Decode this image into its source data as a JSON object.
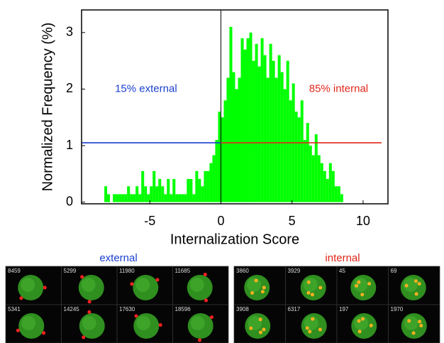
{
  "chart_data": {
    "type": "histogram",
    "xlabel": "Internalization Score",
    "ylabel": "Normalized Frequency (%)",
    "xlim": [
      -9.8,
      11.75
    ],
    "ylim": [
      -0.03,
      3.4
    ],
    "xticks": [
      -5,
      0,
      5,
      10
    ],
    "yticks": [
      0,
      1,
      2,
      3
    ],
    "color": "#00ff00",
    "bins": [
      -8.4,
      -8.2,
      -8.0,
      -7.8,
      -7.6,
      -7.4,
      -7.2,
      -7.0,
      -6.8,
      -6.6,
      -6.4,
      -6.2,
      -6.0,
      -5.8,
      -5.6,
      -5.4,
      -5.2,
      -5.0,
      -4.8,
      -4.6,
      -4.4,
      -4.2,
      -4.0,
      -3.8,
      -3.6,
      -3.4,
      -3.2,
      -3.0,
      -2.8,
      -2.6,
      -2.4,
      -2.2,
      -2.0,
      -1.8,
      -1.6,
      -1.4,
      -1.2,
      -1.0,
      -0.8,
      -0.6,
      -0.4,
      -0.2,
      0.0,
      0.2,
      0.4,
      0.6,
      0.8,
      1.0,
      1.2,
      1.4,
      1.6,
      1.8,
      2.0,
      2.2,
      2.4,
      2.6,
      2.8,
      3.0,
      3.2,
      3.4,
      3.6,
      3.8,
      4.0,
      4.2,
      4.4,
      4.6,
      4.8,
      5.0,
      5.2,
      5.4,
      5.6,
      5.8,
      6.0,
      6.2,
      6.4,
      6.6,
      6.8,
      7.0,
      7.2,
      7.4,
      7.6,
      7.8,
      8.0,
      8.2,
      8.4,
      8.6
    ],
    "values": [
      0,
      0.28,
      0.14,
      0,
      0.14,
      0.14,
      0.14,
      0.14,
      0.14,
      0.28,
      0.14,
      0.14,
      0.28,
      0.14,
      0.55,
      0.28,
      0.14,
      0.28,
      0.55,
      0.28,
      0.41,
      0.28,
      0.14,
      0.41,
      0.14,
      0.41,
      0.14,
      0.14,
      0.14,
      0.14,
      0.41,
      0.41,
      0.14,
      0.55,
      0.41,
      0.28,
      0.55,
      0.55,
      0.69,
      0.83,
      1.1,
      1.6,
      1.5,
      1.8,
      2.2,
      3.1,
      2.3,
      2.0,
      2.2,
      2.9,
      2.7,
      2.9,
      3.0,
      2.5,
      2.8,
      2.4,
      2.9,
      2.6,
      2.2,
      2.8,
      2.5,
      2.2,
      2.6,
      2.3,
      2.0,
      2.5,
      1.8,
      2.1,
      1.6,
      1.5,
      1.8,
      1.1,
      1.4,
      1.0,
      0.83,
      1.2,
      0.83,
      0.69,
      0.55,
      0.41,
      0.69,
      0.55,
      0.28,
      0.28,
      0.14
    ],
    "vline": 0,
    "hlines": [
      {
        "y": 1.05,
        "x": [
          -9.8,
          0
        ],
        "color": "#1a3fd0"
      },
      {
        "y": 1.05,
        "x": [
          0,
          11.3
        ],
        "color": "#e0261a"
      }
    ],
    "annotations": [
      {
        "text": "15% external",
        "x": -7.45,
        "y": 2.0,
        "color": "#1a3fd0"
      },
      {
        "text": "85% internal",
        "x": 6.2,
        "y": 2.0,
        "color": "#e0261a"
      }
    ]
  },
  "panels": [
    {
      "title": "external",
      "color": "#1a3fd0",
      "cells": [
        "8459",
        "5299",
        "11980",
        "11685",
        "5341",
        "14245",
        "17630",
        "18596"
      ]
    },
    {
      "title": "internal",
      "color": "#e0261a",
      "cells": [
        "3860",
        "3929",
        "45",
        "69",
        "3908",
        "6317",
        "197",
        "1970"
      ]
    }
  ]
}
